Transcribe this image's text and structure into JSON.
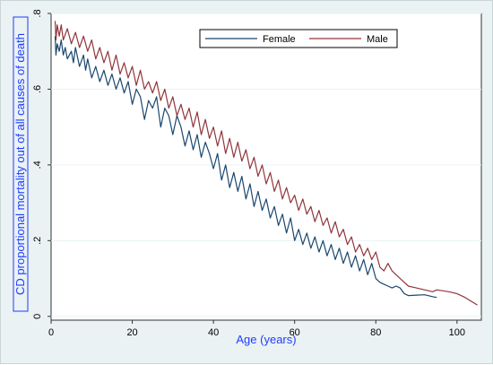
{
  "chart_data": {
    "type": "line",
    "title": "",
    "xlabel": "Age (years)",
    "ylabel": "CD proportional mortality out of all causes of death",
    "xlim": [
      0,
      106
    ],
    "ylim": [
      -0.01,
      0.8
    ],
    "x_ticks": [
      "0",
      "20",
      "40",
      "60",
      "80",
      "100"
    ],
    "y_ticks": [
      "0",
      ".2",
      ".4",
      ".6",
      ".8"
    ],
    "x_tick_values": [
      0,
      20,
      40,
      60,
      80,
      100
    ],
    "y_tick_values": [
      0,
      0.2,
      0.4,
      0.6,
      0.8
    ],
    "grid": "horizontal",
    "legend": {
      "placement": "top-right"
    },
    "series": [
      {
        "name": "Female",
        "color": "#1a476f",
        "points": [
          [
            1,
            0.74
          ],
          [
            1.2,
            0.69
          ],
          [
            1.5,
            0.72
          ],
          [
            2,
            0.7
          ],
          [
            2.5,
            0.73
          ],
          [
            3,
            0.69
          ],
          [
            3.5,
            0.71
          ],
          [
            4,
            0.68
          ],
          [
            5,
            0.7
          ],
          [
            5.5,
            0.67
          ],
          [
            6,
            0.71
          ],
          [
            7,
            0.66
          ],
          [
            8,
            0.69
          ],
          [
            8.5,
            0.65
          ],
          [
            9,
            0.68
          ],
          [
            10,
            0.63
          ],
          [
            11,
            0.66
          ],
          [
            12,
            0.62
          ],
          [
            13,
            0.65
          ],
          [
            14,
            0.61
          ],
          [
            15,
            0.64
          ],
          [
            16,
            0.6
          ],
          [
            17,
            0.63
          ],
          [
            18,
            0.59
          ],
          [
            19,
            0.62
          ],
          [
            20,
            0.56
          ],
          [
            21,
            0.6
          ],
          [
            22,
            0.58
          ],
          [
            23,
            0.52
          ],
          [
            24,
            0.57
          ],
          [
            25,
            0.55
          ],
          [
            26,
            0.58
          ],
          [
            27,
            0.5
          ],
          [
            28,
            0.55
          ],
          [
            29,
            0.53
          ],
          [
            30,
            0.48
          ],
          [
            31,
            0.53
          ],
          [
            32,
            0.5
          ],
          [
            33,
            0.45
          ],
          [
            34,
            0.49
          ],
          [
            35,
            0.44
          ],
          [
            36,
            0.48
          ],
          [
            37,
            0.42
          ],
          [
            38,
            0.46
          ],
          [
            39,
            0.43
          ],
          [
            40,
            0.39
          ],
          [
            41,
            0.43
          ],
          [
            42,
            0.36
          ],
          [
            43,
            0.4
          ],
          [
            44,
            0.34
          ],
          [
            45,
            0.38
          ],
          [
            46,
            0.33
          ],
          [
            47,
            0.37
          ],
          [
            48,
            0.31
          ],
          [
            49,
            0.35
          ],
          [
            50,
            0.29
          ],
          [
            51,
            0.33
          ],
          [
            52,
            0.28
          ],
          [
            53,
            0.31
          ],
          [
            54,
            0.26
          ],
          [
            55,
            0.29
          ],
          [
            56,
            0.24
          ],
          [
            57,
            0.27
          ],
          [
            58,
            0.22
          ],
          [
            59,
            0.26
          ],
          [
            60,
            0.2
          ],
          [
            61,
            0.23
          ],
          [
            62,
            0.19
          ],
          [
            63,
            0.22
          ],
          [
            64,
            0.18
          ],
          [
            65,
            0.21
          ],
          [
            66,
            0.17
          ],
          [
            67,
            0.2
          ],
          [
            68,
            0.16
          ],
          [
            69,
            0.19
          ],
          [
            70,
            0.15
          ],
          [
            71,
            0.18
          ],
          [
            72,
            0.14
          ],
          [
            73,
            0.17
          ],
          [
            74,
            0.13
          ],
          [
            75,
            0.16
          ],
          [
            76,
            0.12
          ],
          [
            77,
            0.15
          ],
          [
            78,
            0.11
          ],
          [
            79,
            0.14
          ],
          [
            80,
            0.1
          ],
          [
            81,
            0.09
          ],
          [
            82,
            0.085
          ],
          [
            83,
            0.08
          ],
          [
            84,
            0.075
          ],
          [
            85,
            0.08
          ],
          [
            86,
            0.075
          ],
          [
            87,
            0.06
          ],
          [
            88,
            0.055
          ],
          [
            90,
            0.056
          ],
          [
            92,
            0.057
          ],
          [
            94,
            0.052
          ],
          [
            95,
            0.05
          ]
        ]
      },
      {
        "name": "Male",
        "color": "#90353b",
        "points": [
          [
            1,
            0.78
          ],
          [
            1.2,
            0.73
          ],
          [
            1.5,
            0.77
          ],
          [
            2,
            0.74
          ],
          [
            2.5,
            0.77
          ],
          [
            3,
            0.73
          ],
          [
            4,
            0.76
          ],
          [
            5,
            0.72
          ],
          [
            6,
            0.75
          ],
          [
            7,
            0.71
          ],
          [
            8,
            0.74
          ],
          [
            9,
            0.7
          ],
          [
            10,
            0.73
          ],
          [
            11,
            0.68
          ],
          [
            12,
            0.71
          ],
          [
            13,
            0.67
          ],
          [
            14,
            0.7
          ],
          [
            15,
            0.65
          ],
          [
            16,
            0.69
          ],
          [
            17,
            0.64
          ],
          [
            18,
            0.67
          ],
          [
            19,
            0.63
          ],
          [
            20,
            0.66
          ],
          [
            21,
            0.61
          ],
          [
            22,
            0.65
          ],
          [
            23,
            0.6
          ],
          [
            24,
            0.62
          ],
          [
            25,
            0.59
          ],
          [
            26,
            0.62
          ],
          [
            27,
            0.57
          ],
          [
            28,
            0.6
          ],
          [
            29,
            0.55
          ],
          [
            30,
            0.58
          ],
          [
            31,
            0.53
          ],
          [
            32,
            0.56
          ],
          [
            33,
            0.52
          ],
          [
            34,
            0.55
          ],
          [
            35,
            0.5
          ],
          [
            36,
            0.54
          ],
          [
            37,
            0.48
          ],
          [
            38,
            0.52
          ],
          [
            39,
            0.47
          ],
          [
            40,
            0.5
          ],
          [
            41,
            0.45
          ],
          [
            42,
            0.49
          ],
          [
            43,
            0.43
          ],
          [
            44,
            0.47
          ],
          [
            45,
            0.42
          ],
          [
            46,
            0.46
          ],
          [
            47,
            0.41
          ],
          [
            48,
            0.44
          ],
          [
            49,
            0.39
          ],
          [
            50,
            0.42
          ],
          [
            51,
            0.37
          ],
          [
            52,
            0.4
          ],
          [
            53,
            0.35
          ],
          [
            54,
            0.38
          ],
          [
            55,
            0.33
          ],
          [
            56,
            0.36
          ],
          [
            57,
            0.31
          ],
          [
            58,
            0.34
          ],
          [
            59,
            0.3
          ],
          [
            60,
            0.32
          ],
          [
            61,
            0.28
          ],
          [
            62,
            0.31
          ],
          [
            63,
            0.27
          ],
          [
            64,
            0.29
          ],
          [
            65,
            0.25
          ],
          [
            66,
            0.28
          ],
          [
            67,
            0.24
          ],
          [
            68,
            0.26
          ],
          [
            69,
            0.22
          ],
          [
            70,
            0.25
          ],
          [
            71,
            0.21
          ],
          [
            72,
            0.23
          ],
          [
            73,
            0.19
          ],
          [
            74,
            0.21
          ],
          [
            75,
            0.17
          ],
          [
            76,
            0.19
          ],
          [
            77,
            0.16
          ],
          [
            78,
            0.18
          ],
          [
            79,
            0.15
          ],
          [
            80,
            0.17
          ],
          [
            81,
            0.13
          ],
          [
            82,
            0.12
          ],
          [
            83,
            0.14
          ],
          [
            84,
            0.12
          ],
          [
            85,
            0.11
          ],
          [
            86,
            0.1
          ],
          [
            87,
            0.09
          ],
          [
            88,
            0.08
          ],
          [
            90,
            0.075
          ],
          [
            92,
            0.07
          ],
          [
            94,
            0.065
          ],
          [
            95,
            0.07
          ],
          [
            98,
            0.065
          ],
          [
            100,
            0.06
          ],
          [
            102,
            0.05
          ],
          [
            105,
            0.03
          ]
        ]
      }
    ]
  }
}
